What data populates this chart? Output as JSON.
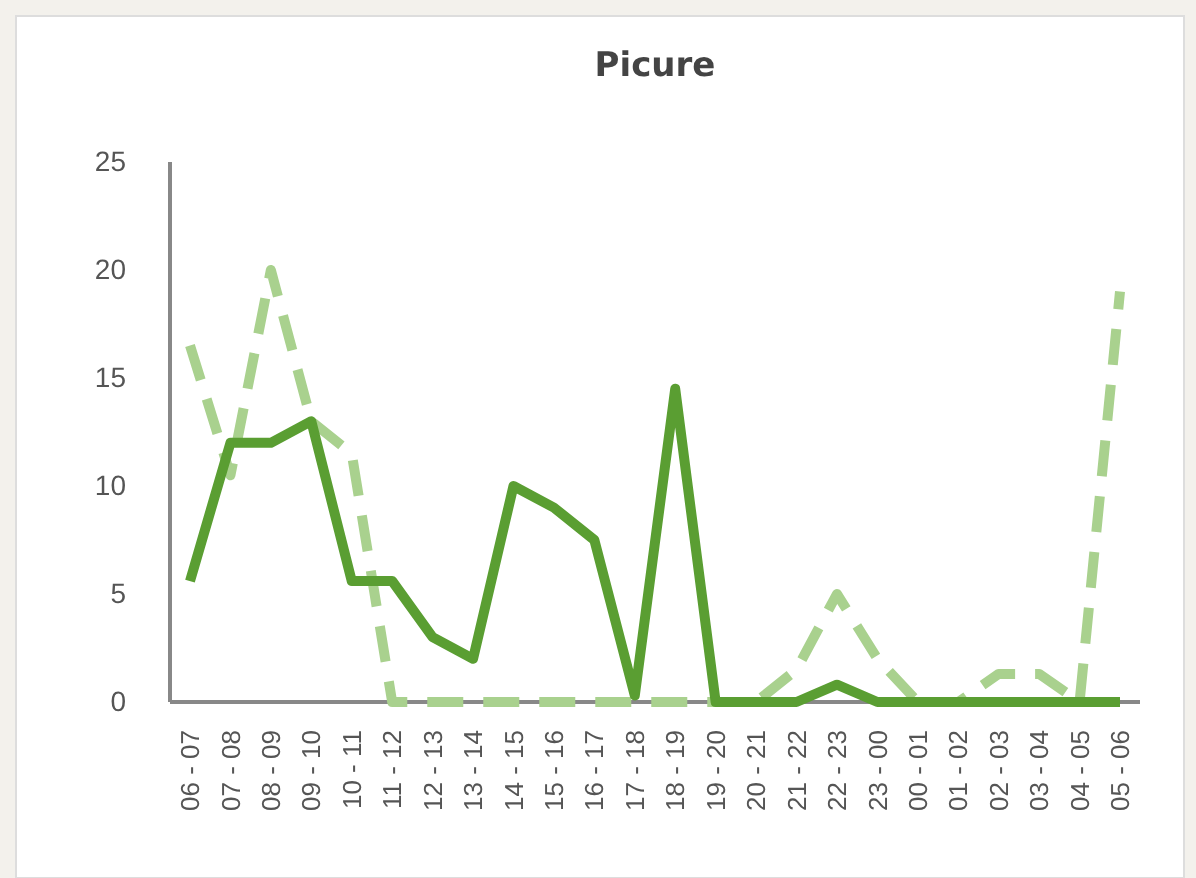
{
  "chart_data": {
    "type": "line",
    "title": "Picure",
    "categories": [
      "06 - 07",
      "07 - 08",
      "08 - 09",
      "09 - 10",
      "10 - 11",
      "11 - 12",
      "12 - 13",
      "13 - 14",
      "14 - 15",
      "15 - 16",
      "16 - 17",
      "17 - 18",
      "18 - 19",
      "19 - 20",
      "20 - 21",
      "21 - 22",
      "22 - 23",
      "23 - 00",
      "00 - 01",
      "01 - 02",
      "02 - 03",
      "03 - 04",
      "04 - 05",
      "05 - 06"
    ],
    "series": [
      {
        "color": "#a9d18e",
        "line_style": "dashed",
        "values": [
          16.5,
          10.5,
          20,
          13,
          11.5,
          0,
          0,
          0,
          0,
          0,
          0,
          0,
          0,
          0,
          0,
          1.5,
          5,
          2,
          0,
          0,
          1.3,
          1.3,
          0,
          19
        ]
      },
      {
        "color": "#5a9e32",
        "line_style": "solid",
        "values": [
          5.6,
          12,
          12,
          13,
          5.6,
          5.6,
          3,
          2,
          10,
          9,
          7.5,
          0.3,
          14.5,
          0,
          0,
          0,
          0.8,
          0,
          0,
          0,
          0,
          0,
          0,
          0
        ]
      }
    ],
    "ylim": [
      0,
      25
    ],
    "yticks": [
      0,
      5,
      10,
      15,
      20,
      25
    ],
    "grid": false
  }
}
